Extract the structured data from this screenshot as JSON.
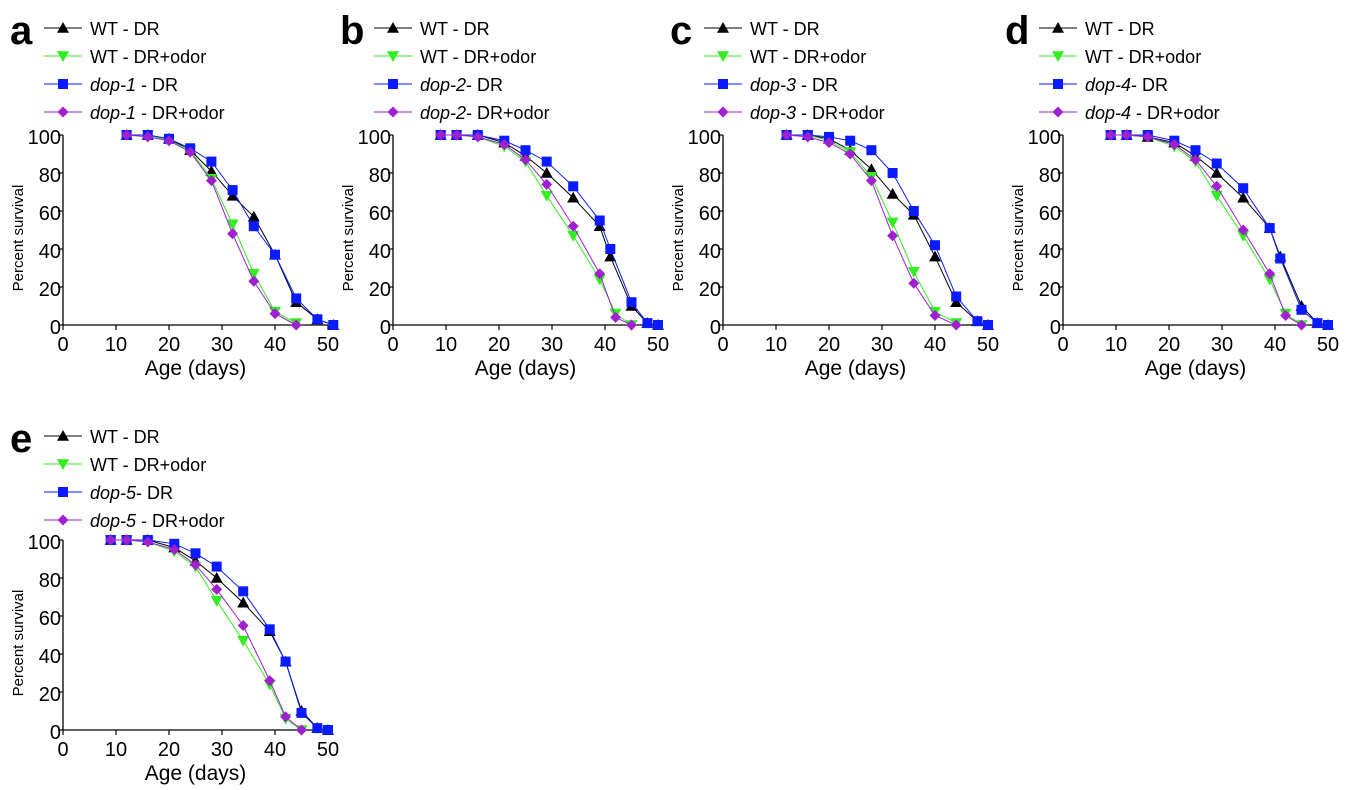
{
  "figure": {
    "colors": {
      "WT_DR": "#000000",
      "WT_DR_odor": "#33ee22",
      "mutant_DR": "#0a1bff",
      "mutant_DR_odor": "#a020d0"
    }
  },
  "chart_data": [
    {
      "panel": "a",
      "type": "line",
      "xlabel": "Age (days)",
      "ylabel": "Percent survival",
      "xlim": [
        0,
        50
      ],
      "ylim": [
        0,
        100
      ],
      "xticks": [
        0,
        10,
        20,
        30,
        40,
        50
      ],
      "yticks": [
        0,
        20,
        40,
        60,
        80,
        100
      ],
      "legend_placement": "top-left",
      "series": [
        {
          "name": "WT - DR",
          "legend": [
            {
              "text": "WT - DR",
              "italic": false
            }
          ],
          "marker": "triangle-up",
          "color": "#000000",
          "x": [
            12,
            16,
            20,
            24,
            28,
            32,
            36,
            40,
            44,
            48,
            51
          ],
          "y": [
            100,
            100,
            98,
            92,
            81,
            68,
            57,
            37,
            12,
            3,
            0
          ]
        },
        {
          "name": "WT - DR+odor",
          "legend": [
            {
              "text": "WT - DR+odor",
              "italic": false
            }
          ],
          "marker": "triangle-down",
          "color": "#33ee22",
          "x": [
            12,
            16,
            20,
            24,
            28,
            32,
            36,
            40,
            44
          ],
          "y": [
            100,
            100,
            97,
            92,
            77,
            53,
            27,
            7,
            1
          ]
        },
        {
          "name": "dop-1 - DR",
          "legend": [
            {
              "text": "dop-1",
              "italic": true
            },
            {
              "text": " - DR",
              "italic": false
            }
          ],
          "marker": "square",
          "color": "#0a1bff",
          "x": [
            12,
            16,
            20,
            24,
            28,
            32,
            36,
            40,
            44,
            48,
            51
          ],
          "y": [
            100,
            100,
            98,
            93,
            86,
            71,
            52,
            37,
            14,
            3,
            0
          ]
        },
        {
          "name": "dop-1 - DR+odor",
          "legend": [
            {
              "text": "dop-1",
              "italic": true
            },
            {
              "text": " - DR+odor",
              "italic": false
            }
          ],
          "marker": "diamond",
          "color": "#a020d0",
          "x": [
            12,
            16,
            20,
            24,
            28,
            32,
            36,
            40,
            44
          ],
          "y": [
            100,
            99,
            97,
            91,
            76,
            48,
            23,
            6,
            0
          ]
        }
      ]
    },
    {
      "panel": "b",
      "type": "line",
      "xlabel": "Age (days)",
      "ylabel": "Percent survival",
      "xlim": [
        0,
        50
      ],
      "ylim": [
        0,
        100
      ],
      "xticks": [
        0,
        10,
        20,
        30,
        40,
        50
      ],
      "yticks": [
        0,
        20,
        40,
        60,
        80,
        100
      ],
      "legend_placement": "top-left",
      "series": [
        {
          "name": "WT - DR",
          "legend": [
            {
              "text": "WT - DR",
              "italic": false
            }
          ],
          "marker": "triangle-up",
          "color": "#000000",
          "x": [
            9,
            12,
            16,
            21,
            25,
            29,
            34,
            39,
            41,
            45,
            48,
            50
          ],
          "y": [
            100,
            100,
            100,
            96,
            89,
            80,
            67,
            52,
            36,
            10,
            1,
            0
          ]
        },
        {
          "name": "WT - DR+odor",
          "legend": [
            {
              "text": "WT - DR+odor",
              "italic": false
            }
          ],
          "marker": "triangle-down",
          "color": "#33ee22",
          "x": [
            9,
            12,
            16,
            21,
            25,
            29,
            34,
            39,
            42,
            45
          ],
          "y": [
            100,
            100,
            99,
            94,
            86,
            68,
            47,
            24,
            6,
            0
          ]
        },
        {
          "name": "dop-2- DR",
          "legend": [
            {
              "text": "dop-2",
              "italic": true
            },
            {
              "text": "- DR",
              "italic": false
            }
          ],
          "marker": "square",
          "color": "#0a1bff",
          "x": [
            9,
            12,
            16,
            21,
            25,
            29,
            34,
            39,
            41,
            45,
            48,
            50
          ],
          "y": [
            100,
            100,
            100,
            97,
            92,
            86,
            73,
            55,
            40,
            12,
            1,
            0
          ]
        },
        {
          "name": "dop-2- DR+odor",
          "legend": [
            {
              "text": "dop-2",
              "italic": true
            },
            {
              "text": "- DR+odor",
              "italic": false
            }
          ],
          "marker": "diamond",
          "color": "#a020d0",
          "x": [
            9,
            12,
            16,
            21,
            25,
            29,
            34,
            39,
            42,
            45
          ],
          "y": [
            100,
            100,
            99,
            95,
            87,
            74,
            52,
            27,
            4,
            0
          ]
        }
      ]
    },
    {
      "panel": "c",
      "type": "line",
      "xlabel": "Age (days)",
      "ylabel": "Percent survival",
      "xlim": [
        0,
        50
      ],
      "ylim": [
        0,
        100
      ],
      "xticks": [
        0,
        10,
        20,
        30,
        40,
        50
      ],
      "yticks": [
        0,
        20,
        40,
        60,
        80,
        100
      ],
      "legend_placement": "top-left",
      "series": [
        {
          "name": "WT - DR",
          "legend": [
            {
              "text": "WT - DR",
              "italic": false
            }
          ],
          "marker": "triangle-up",
          "color": "#000000",
          "x": [
            12,
            16,
            20,
            24,
            28,
            32,
            36,
            40,
            44,
            48,
            50
          ],
          "y": [
            100,
            100,
            98,
            92,
            82,
            69,
            58,
            36,
            12,
            2,
            0
          ]
        },
        {
          "name": "WT - DR+odor",
          "legend": [
            {
              "text": "WT - DR+odor",
              "italic": false
            }
          ],
          "marker": "triangle-down",
          "color": "#33ee22",
          "x": [
            12,
            16,
            20,
            24,
            28,
            32,
            36,
            40,
            44
          ],
          "y": [
            100,
            100,
            97,
            91,
            78,
            54,
            28,
            7,
            1
          ]
        },
        {
          "name": "dop-3 - DR",
          "legend": [
            {
              "text": "dop-3",
              "italic": true
            },
            {
              "text": " - DR",
              "italic": false
            }
          ],
          "marker": "square",
          "color": "#0a1bff",
          "x": [
            12,
            16,
            20,
            24,
            28,
            32,
            36,
            40,
            44,
            48,
            50
          ],
          "y": [
            100,
            100,
            99,
            97,
            92,
            80,
            60,
            42,
            15,
            2,
            0
          ]
        },
        {
          "name": "dop-3 - DR+odor",
          "legend": [
            {
              "text": "dop-3",
              "italic": true
            },
            {
              "text": " - DR+odor",
              "italic": false
            }
          ],
          "marker": "diamond",
          "color": "#a020d0",
          "x": [
            12,
            16,
            20,
            24,
            28,
            32,
            36,
            40,
            44
          ],
          "y": [
            100,
            99,
            96,
            90,
            76,
            47,
            22,
            5,
            0
          ]
        }
      ]
    },
    {
      "panel": "d",
      "type": "line",
      "xlabel": "Age (days)",
      "ylabel": "Percent survival",
      "xlim": [
        0,
        50
      ],
      "ylim": [
        0,
        100
      ],
      "xticks": [
        0,
        10,
        20,
        30,
        40,
        50
      ],
      "yticks": [
        0,
        20,
        40,
        60,
        80,
        100
      ],
      "legend_placement": "top-left",
      "series": [
        {
          "name": "WT - DR",
          "legend": [
            {
              "text": "WT - DR",
              "italic": false
            }
          ],
          "marker": "triangle-up",
          "color": "#000000",
          "x": [
            9,
            12,
            16,
            21,
            25,
            29,
            34,
            39,
            41,
            45,
            48,
            50
          ],
          "y": [
            100,
            100,
            99,
            96,
            89,
            80,
            67,
            51,
            36,
            10,
            1,
            0
          ]
        },
        {
          "name": "WT - DR+odor",
          "legend": [
            {
              "text": "WT - DR+odor",
              "italic": false
            }
          ],
          "marker": "triangle-down",
          "color": "#33ee22",
          "x": [
            9,
            12,
            16,
            21,
            25,
            29,
            34,
            39,
            42,
            45
          ],
          "y": [
            100,
            100,
            99,
            94,
            86,
            68,
            47,
            24,
            6,
            0
          ]
        },
        {
          "name": "dop-4- DR",
          "legend": [
            {
              "text": "dop-4",
              "italic": true
            },
            {
              "text": "- DR",
              "italic": false
            }
          ],
          "marker": "square",
          "color": "#0a1bff",
          "x": [
            9,
            12,
            16,
            21,
            25,
            29,
            34,
            39,
            41,
            45,
            48,
            50
          ],
          "y": [
            100,
            100,
            100,
            97,
            92,
            85,
            72,
            51,
            35,
            8,
            1,
            0
          ]
        },
        {
          "name": "dop-4 - DR+odor",
          "legend": [
            {
              "text": "dop-4",
              "italic": true
            },
            {
              "text": " - DR+odor",
              "italic": false
            }
          ],
          "marker": "diamond",
          "color": "#a020d0",
          "x": [
            9,
            12,
            16,
            21,
            25,
            29,
            34,
            39,
            42,
            45
          ],
          "y": [
            100,
            100,
            99,
            95,
            87,
            73,
            50,
            27,
            5,
            0
          ]
        }
      ]
    },
    {
      "panel": "e",
      "type": "line",
      "xlabel": "Age (days)",
      "ylabel": "Percent survival",
      "xlim": [
        0,
        50
      ],
      "ylim": [
        0,
        100
      ],
      "xticks": [
        0,
        10,
        20,
        30,
        40,
        50
      ],
      "yticks": [
        0,
        20,
        40,
        60,
        80,
        100
      ],
      "legend_placement": "top-left",
      "series": [
        {
          "name": "WT - DR",
          "legend": [
            {
              "text": "WT - DR",
              "italic": false
            }
          ],
          "marker": "triangle-up",
          "color": "#000000",
          "x": [
            9,
            12,
            16,
            21,
            25,
            29,
            34,
            39,
            42,
            45,
            48,
            50
          ],
          "y": [
            100,
            100,
            100,
            96,
            89,
            80,
            67,
            52,
            36,
            10,
            1,
            0
          ]
        },
        {
          "name": "WT - DR+odor",
          "legend": [
            {
              "text": "WT - DR+odor",
              "italic": false
            }
          ],
          "marker": "triangle-down",
          "color": "#33ee22",
          "x": [
            9,
            12,
            16,
            21,
            25,
            29,
            34,
            39,
            42,
            45
          ],
          "y": [
            100,
            100,
            99,
            94,
            86,
            68,
            47,
            24,
            6,
            0
          ]
        },
        {
          "name": "dop-5- DR",
          "legend": [
            {
              "text": "dop-5",
              "italic": true
            },
            {
              "text": "- DR",
              "italic": false
            }
          ],
          "marker": "square",
          "color": "#0a1bff",
          "x": [
            9,
            12,
            16,
            21,
            25,
            29,
            34,
            39,
            42,
            45,
            48,
            50
          ],
          "y": [
            100,
            100,
            100,
            98,
            93,
            86,
            73,
            53,
            36,
            9,
            1,
            0
          ]
        },
        {
          "name": "dop-5 - DR+odor",
          "legend": [
            {
              "text": "dop-5",
              "italic": true
            },
            {
              "text": " - DR+odor",
              "italic": false
            }
          ],
          "marker": "diamond",
          "color": "#a020d0",
          "x": [
            9,
            12,
            16,
            21,
            25,
            29,
            34,
            39,
            42,
            45
          ],
          "y": [
            100,
            100,
            99,
            95,
            87,
            74,
            55,
            26,
            7,
            0
          ]
        }
      ]
    }
  ]
}
